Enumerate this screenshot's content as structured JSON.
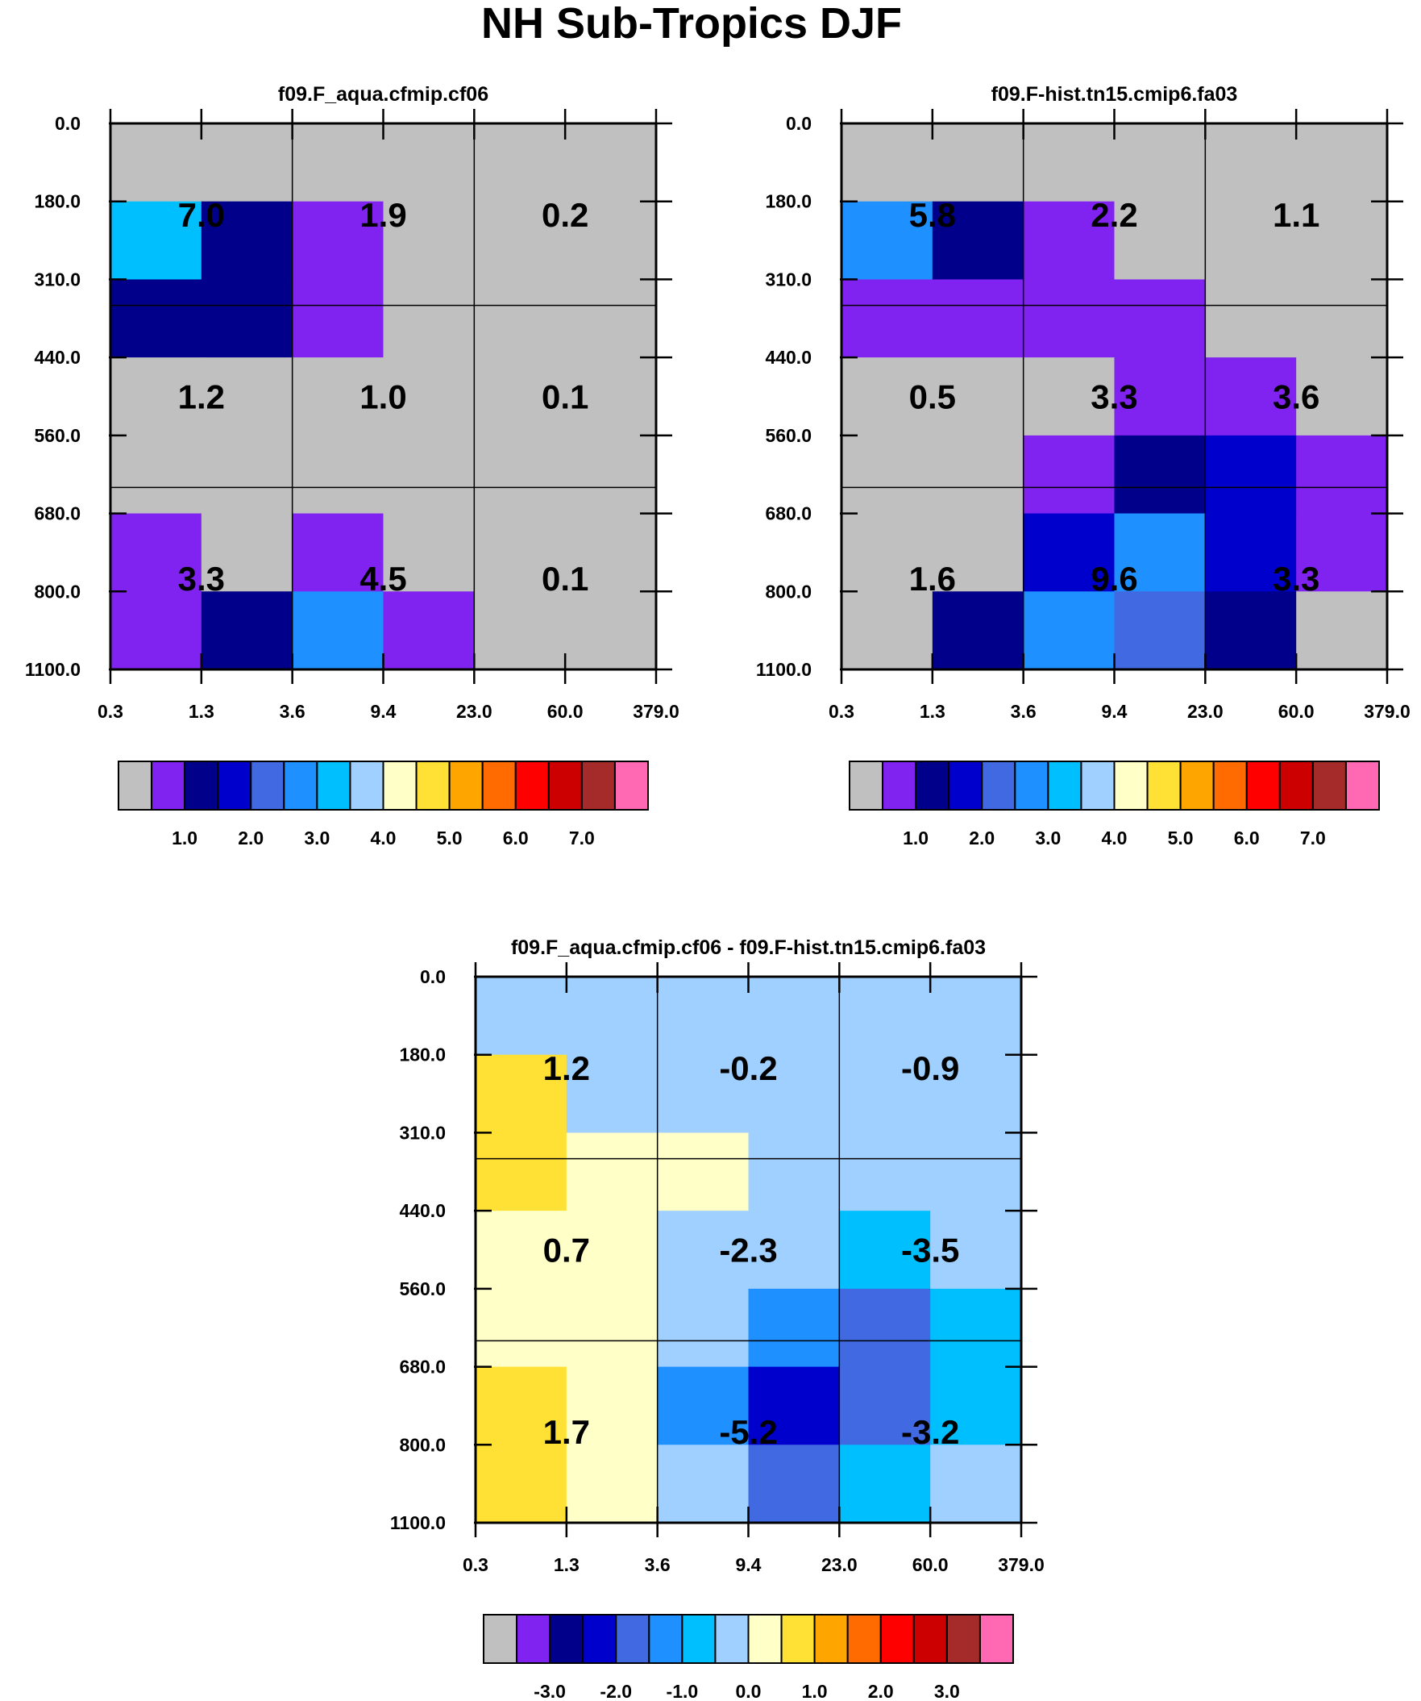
{
  "title": "NH Sub-Tropics DJF",
  "colors": {
    "palette": [
      "#c0c0c0",
      "#8123f0",
      "#00008b",
      "#0000cd",
      "#4169e1",
      "#1e90ff",
      "#00bfff",
      "#a0d0ff",
      "#ffffc8",
      "#ffe135",
      "#ffa500",
      "#ff6b00",
      "#ff0000",
      "#cc0000",
      "#a52a2a",
      "#ff69b4"
    ]
  },
  "chart_data": [
    {
      "type": "heatmap",
      "title": "f09.F_aqua.cfmip.cf06",
      "x_ticks": [
        "0.3",
        "1.3",
        "3.6",
        "9.4",
        "23.0",
        "60.0",
        "379.0"
      ],
      "y_ticks": [
        "0.0",
        "180.0",
        "310.0",
        "440.0",
        "560.0",
        "680.0",
        "800.0",
        "1100.0"
      ],
      "y_order": "top-to-bottom",
      "fine_cell_colors": [
        [
          "#c0c0c0",
          "#c0c0c0",
          "#c0c0c0",
          "#c0c0c0",
          "#c0c0c0",
          "#c0c0c0"
        ],
        [
          "#00bfff",
          "#00008b",
          "#8123f0",
          "#c0c0c0",
          "#c0c0c0",
          "#c0c0c0"
        ],
        [
          "#00008b",
          "#00008b",
          "#8123f0",
          "#c0c0c0",
          "#c0c0c0",
          "#c0c0c0"
        ],
        [
          "#c0c0c0",
          "#c0c0c0",
          "#c0c0c0",
          "#c0c0c0",
          "#c0c0c0",
          "#c0c0c0"
        ],
        [
          "#c0c0c0",
          "#c0c0c0",
          "#c0c0c0",
          "#c0c0c0",
          "#c0c0c0",
          "#c0c0c0"
        ],
        [
          "#8123f0",
          "#c0c0c0",
          "#8123f0",
          "#c0c0c0",
          "#c0c0c0",
          "#c0c0c0"
        ],
        [
          "#8123f0",
          "#00008b",
          "#1e90ff",
          "#8123f0",
          "#c0c0c0",
          "#c0c0c0"
        ]
      ],
      "cell_labels": [
        [
          "7.0",
          "1.9",
          "0.2"
        ],
        [
          "1.2",
          "1.0",
          "0.1"
        ],
        [
          "3.3",
          "4.5",
          "0.1"
        ]
      ],
      "colorbar": {
        "labels": [
          "1.0",
          "2.0",
          "3.0",
          "4.0",
          "5.0",
          "6.0",
          "7.0"
        ],
        "levels": [
          0.5,
          1.0,
          1.5,
          2.0,
          2.5,
          3.0,
          3.5,
          4.0,
          4.5,
          5.0,
          5.5,
          6.0,
          6.5,
          7.0,
          7.5
        ]
      }
    },
    {
      "type": "heatmap",
      "title": "f09.F-hist.tn15.cmip6.fa03",
      "x_ticks": [
        "0.3",
        "1.3",
        "3.6",
        "9.4",
        "23.0",
        "60.0",
        "379.0"
      ],
      "y_ticks": [
        "0.0",
        "180.0",
        "310.0",
        "440.0",
        "560.0",
        "680.0",
        "800.0",
        "1100.0"
      ],
      "y_order": "top-to-bottom",
      "fine_cell_colors": [
        [
          "#c0c0c0",
          "#c0c0c0",
          "#c0c0c0",
          "#c0c0c0",
          "#c0c0c0",
          "#c0c0c0"
        ],
        [
          "#1e90ff",
          "#00008b",
          "#8123f0",
          "#c0c0c0",
          "#c0c0c0",
          "#c0c0c0"
        ],
        [
          "#8123f0",
          "#8123f0",
          "#8123f0",
          "#8123f0",
          "#c0c0c0",
          "#c0c0c0"
        ],
        [
          "#c0c0c0",
          "#c0c0c0",
          "#c0c0c0",
          "#8123f0",
          "#8123f0",
          "#c0c0c0"
        ],
        [
          "#c0c0c0",
          "#c0c0c0",
          "#8123f0",
          "#00008b",
          "#0000cd",
          "#8123f0"
        ],
        [
          "#c0c0c0",
          "#c0c0c0",
          "#0000cd",
          "#1e90ff",
          "#0000cd",
          "#8123f0"
        ],
        [
          "#c0c0c0",
          "#00008b",
          "#1e90ff",
          "#4169e1",
          "#00008b",
          "#c0c0c0"
        ]
      ],
      "cell_labels": [
        [
          "5.8",
          "2.2",
          "1.1"
        ],
        [
          "0.5",
          "3.3",
          "3.6"
        ],
        [
          "1.6",
          "9.6",
          "3.3"
        ]
      ],
      "colorbar": {
        "labels": [
          "1.0",
          "2.0",
          "3.0",
          "4.0",
          "5.0",
          "6.0",
          "7.0"
        ],
        "levels": [
          0.5,
          1.0,
          1.5,
          2.0,
          2.5,
          3.0,
          3.5,
          4.0,
          4.5,
          5.0,
          5.5,
          6.0,
          6.5,
          7.0,
          7.5
        ]
      }
    },
    {
      "type": "heatmap",
      "title": "f09.F_aqua.cfmip.cf06 - f09.F-hist.tn15.cmip6.fa03",
      "x_ticks": [
        "0.3",
        "1.3",
        "3.6",
        "9.4",
        "23.0",
        "60.0",
        "379.0"
      ],
      "y_ticks": [
        "0.0",
        "180.0",
        "310.0",
        "440.0",
        "560.0",
        "680.0",
        "800.0",
        "1100.0"
      ],
      "y_order": "top-to-bottom",
      "fine_cell_colors": [
        [
          "#a0d0ff",
          "#a0d0ff",
          "#a0d0ff",
          "#a0d0ff",
          "#a0d0ff",
          "#a0d0ff"
        ],
        [
          "#ffe135",
          "#a0d0ff",
          "#a0d0ff",
          "#a0d0ff",
          "#a0d0ff",
          "#a0d0ff"
        ],
        [
          "#ffe135",
          "#ffffc8",
          "#ffffc8",
          "#a0d0ff",
          "#a0d0ff",
          "#a0d0ff"
        ],
        [
          "#ffffc8",
          "#ffffc8",
          "#a0d0ff",
          "#a0d0ff",
          "#00bfff",
          "#a0d0ff"
        ],
        [
          "#ffffc8",
          "#ffffc8",
          "#a0d0ff",
          "#1e90ff",
          "#4169e1",
          "#00bfff"
        ],
        [
          "#ffe135",
          "#ffffc8",
          "#1e90ff",
          "#0000cd",
          "#4169e1",
          "#00bfff"
        ],
        [
          "#ffe135",
          "#ffffc8",
          "#a0d0ff",
          "#4169e1",
          "#00bfff",
          "#a0d0ff"
        ]
      ],
      "cell_labels": [
        [
          "1.2",
          "-0.2",
          "-0.9"
        ],
        [
          "0.7",
          "-2.3",
          "-3.5"
        ],
        [
          "1.7",
          "-5.2",
          "-3.2"
        ]
      ],
      "colorbar": {
        "labels": [
          "-3.0",
          "-2.0",
          "-1.0",
          "0.0",
          "1.0",
          "2.0",
          "3.0"
        ],
        "levels": [
          -3.5,
          -3.0,
          -2.5,
          -2.0,
          -1.5,
          -1.0,
          -0.5,
          0.0,
          0.5,
          1.0,
          1.5,
          2.0,
          2.5,
          3.0,
          3.5
        ]
      }
    }
  ]
}
